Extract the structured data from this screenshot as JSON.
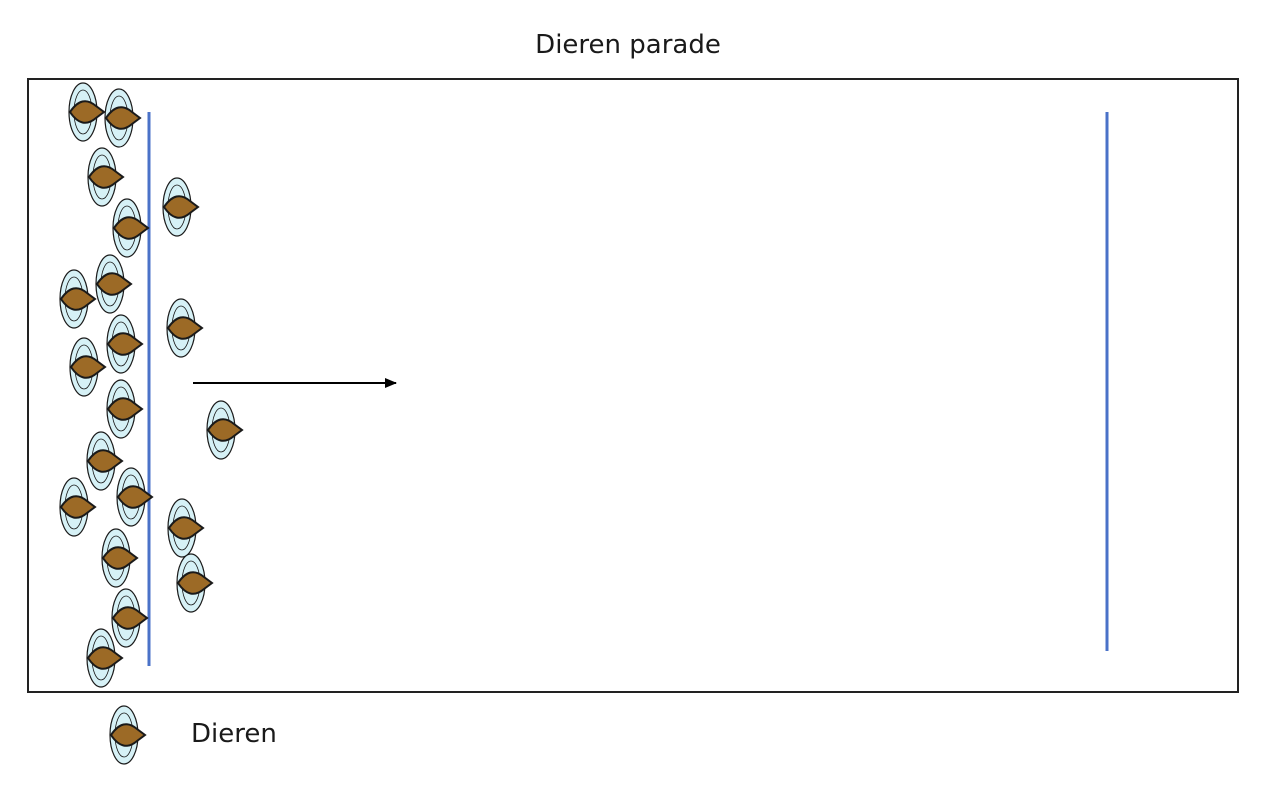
{
  "title": "Dieren parade",
  "legend": {
    "label": "Dieren",
    "icon": "animal-icon"
  },
  "colors": {
    "frame": "#222222",
    "line": "#4a72c8",
    "arrow": "#000000",
    "animal_body": "#9c6a26",
    "animal_body_outline": "#1a1a1a",
    "animal_halo": "#d6f1f6",
    "animal_halo_outline": "#1a1a1a"
  }
}
